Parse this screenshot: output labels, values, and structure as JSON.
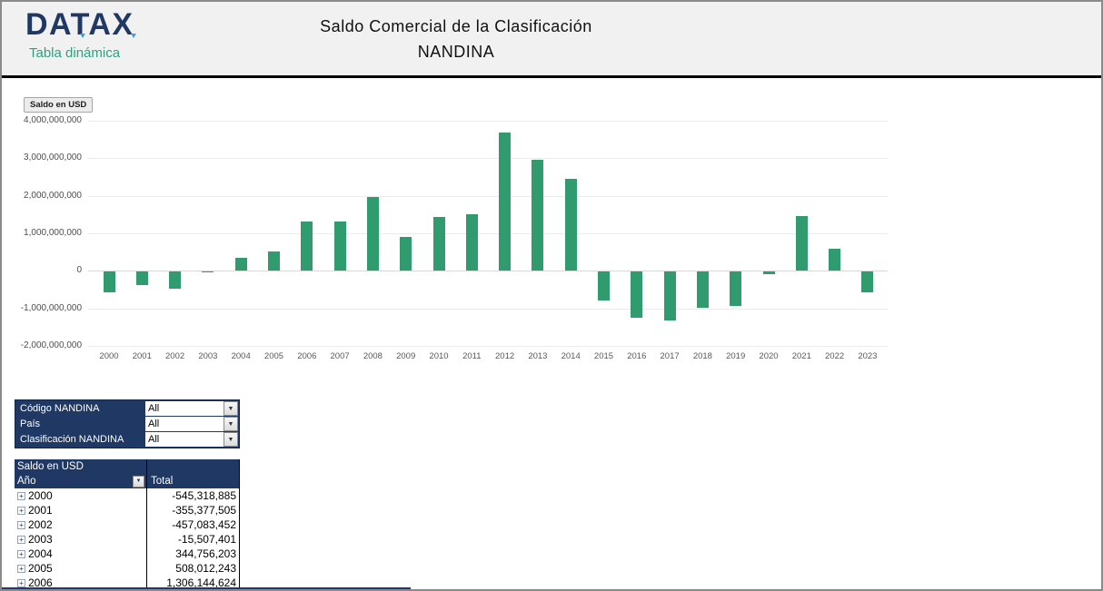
{
  "header": {
    "logo_text": "DATAX",
    "logo_subtitle": "Tabla dinámica",
    "title_line1": "Saldo Comercial de la Clasificación",
    "title_line2": "NANDINA"
  },
  "chart": {
    "field_button": "Saldo en USD"
  },
  "chart_data": {
    "type": "bar",
    "title": "Saldo Comercial de la Clasificación NANDINA",
    "xlabel": "",
    "ylabel": "Saldo en USD",
    "ylim": [
      -2000000000,
      4000000000
    ],
    "grid": true,
    "legend": false,
    "bar_color": "#2f9b6e",
    "yticks": [
      {
        "value": 4000000000,
        "label": "4,000,000,000"
      },
      {
        "value": 3000000000,
        "label": "3,000,000,000"
      },
      {
        "value": 2000000000,
        "label": "2,000,000,000"
      },
      {
        "value": 1000000000,
        "label": "1,000,000,000"
      },
      {
        "value": 0,
        "label": "0"
      },
      {
        "value": -1000000000,
        "label": "-1,000,000,000"
      },
      {
        "value": -2000000000,
        "label": "-2,000,000,000"
      }
    ],
    "categories": [
      "2000",
      "2001",
      "2002",
      "2003",
      "2004",
      "2005",
      "2006",
      "2007",
      "2008",
      "2009",
      "2010",
      "2011",
      "2012",
      "2013",
      "2014",
      "2015",
      "2016",
      "2017",
      "2018",
      "2019",
      "2020",
      "2021",
      "2022",
      "2023"
    ],
    "values": [
      -545318885,
      -355377505,
      -457083452,
      -15507401,
      344756203,
      508012243,
      1306144624,
      1310000000,
      1960000000,
      900000000,
      1440000000,
      1520000000,
      3680000000,
      2970000000,
      2460000000,
      -770000000,
      -1230000000,
      -1300000000,
      -950000000,
      -900000000,
      -60000000,
      1470000000,
      600000000,
      -560000000
    ]
  },
  "filters": {
    "items": [
      {
        "label": "Código NANDINA",
        "value": "All"
      },
      {
        "label": "País",
        "value": "All"
      },
      {
        "label": "Clasificación NANDINA",
        "value": "All"
      }
    ]
  },
  "pivot_table": {
    "title": "Saldo en USD",
    "row_header": "Año",
    "value_header": "Total",
    "rows": [
      {
        "year": "2000",
        "total": "-545,318,885"
      },
      {
        "year": "2001",
        "total": "-355,377,505"
      },
      {
        "year": "2002",
        "total": "-457,083,452"
      },
      {
        "year": "2003",
        "total": "-15,507,401"
      },
      {
        "year": "2004",
        "total": "344,756,203"
      },
      {
        "year": "2005",
        "total": "508,012,243"
      },
      {
        "year": "2006",
        "total": "1,306,144,624"
      }
    ]
  },
  "colors": {
    "navy": "#1f3864",
    "teal": "#2fa080",
    "bar_green": "#2f9b6e",
    "header_bg": "#f1f1f1",
    "accent_blue": "#3ea3dc"
  }
}
